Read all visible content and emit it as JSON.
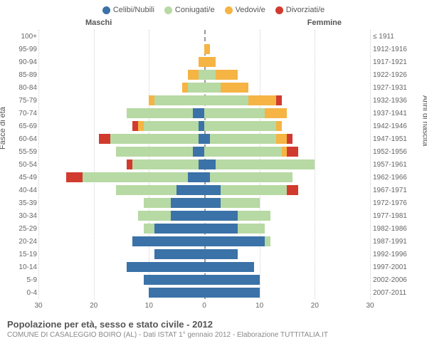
{
  "legend": [
    {
      "label": "Celibi/Nubili",
      "color": "#3b72a8"
    },
    {
      "label": "Coniugati/e",
      "color": "#b7d9a3"
    },
    {
      "label": "Vedovi/e",
      "color": "#f5b444"
    },
    {
      "label": "Divorziati/e",
      "color": "#d13b2e"
    }
  ],
  "header": {
    "male": "Maschi",
    "female": "Femmine"
  },
  "axes": {
    "left_title": "Fasce di età",
    "right_title": "Anni di nascita",
    "x_min": -30,
    "x_max": 30,
    "x_step": 10,
    "gridline_color": "#cfcfcf",
    "centerline_color": "#999999",
    "tick_fontsize": 10,
    "tick_color": "#666666"
  },
  "colors": {
    "celibi": "#3b72a8",
    "coniugati": "#b7d9a3",
    "vedovi": "#f5b444",
    "divorziati": "#d13b2e",
    "background": "#ffffff"
  },
  "rows": [
    {
      "age": "100+",
      "birth": "≤ 1911",
      "m": [
        0,
        0,
        0,
        0
      ],
      "f": [
        0,
        0,
        0,
        0
      ]
    },
    {
      "age": "95-99",
      "birth": "1912-1916",
      "m": [
        0,
        0,
        0,
        0
      ],
      "f": [
        0,
        0,
        1,
        0
      ]
    },
    {
      "age": "90-94",
      "birth": "1917-1921",
      "m": [
        0,
        0,
        1,
        0
      ],
      "f": [
        0,
        0,
        2,
        0
      ]
    },
    {
      "age": "85-89",
      "birth": "1922-1926",
      "m": [
        0,
        1,
        2,
        0
      ],
      "f": [
        0,
        2,
        4,
        0
      ]
    },
    {
      "age": "80-84",
      "birth": "1927-1931",
      "m": [
        0,
        3,
        1,
        0
      ],
      "f": [
        0,
        3,
        5,
        0
      ]
    },
    {
      "age": "75-79",
      "birth": "1932-1936",
      "m": [
        0,
        9,
        1,
        0
      ],
      "f": [
        0,
        8,
        5,
        1
      ]
    },
    {
      "age": "70-74",
      "birth": "1937-1941",
      "m": [
        2,
        12,
        0,
        0
      ],
      "f": [
        0,
        11,
        4,
        0
      ]
    },
    {
      "age": "65-69",
      "birth": "1942-1946",
      "m": [
        1,
        10,
        1,
        1
      ],
      "f": [
        0,
        13,
        1,
        0
      ]
    },
    {
      "age": "60-64",
      "birth": "1947-1951",
      "m": [
        1,
        16,
        0,
        2
      ],
      "f": [
        1,
        12,
        2,
        1
      ]
    },
    {
      "age": "55-59",
      "birth": "1952-1956",
      "m": [
        2,
        14,
        0,
        0
      ],
      "f": [
        0,
        14,
        1,
        2
      ]
    },
    {
      "age": "50-54",
      "birth": "1957-1961",
      "m": [
        1,
        12,
        0,
        1
      ],
      "f": [
        2,
        18,
        0,
        0
      ]
    },
    {
      "age": "45-49",
      "birth": "1962-1966",
      "m": [
        3,
        19,
        0,
        3
      ],
      "f": [
        1,
        15,
        0,
        0
      ]
    },
    {
      "age": "40-44",
      "birth": "1967-1971",
      "m": [
        5,
        11,
        0,
        0
      ],
      "f": [
        3,
        12,
        0,
        2
      ]
    },
    {
      "age": "35-39",
      "birth": "1972-1976",
      "m": [
        6,
        5,
        0,
        0
      ],
      "f": [
        3,
        7,
        0,
        0
      ]
    },
    {
      "age": "30-34",
      "birth": "1977-1981",
      "m": [
        6,
        6,
        0,
        0
      ],
      "f": [
        6,
        6,
        0,
        0
      ]
    },
    {
      "age": "25-29",
      "birth": "1982-1986",
      "m": [
        9,
        2,
        0,
        0
      ],
      "f": [
        6,
        5,
        0,
        0
      ]
    },
    {
      "age": "20-24",
      "birth": "1987-1991",
      "m": [
        13,
        0,
        0,
        0
      ],
      "f": [
        11,
        1,
        0,
        0
      ]
    },
    {
      "age": "15-19",
      "birth": "1992-1996",
      "m": [
        9,
        0,
        0,
        0
      ],
      "f": [
        6,
        0,
        0,
        0
      ]
    },
    {
      "age": "10-14",
      "birth": "1997-2001",
      "m": [
        14,
        0,
        0,
        0
      ],
      "f": [
        9,
        0,
        0,
        0
      ]
    },
    {
      "age": "5-9",
      "birth": "2002-2006",
      "m": [
        11,
        0,
        0,
        0
      ],
      "f": [
        10,
        0,
        0,
        0
      ]
    },
    {
      "age": "0-4",
      "birth": "2007-2011",
      "m": [
        10,
        0,
        0,
        0
      ],
      "f": [
        10,
        0,
        0,
        0
      ]
    }
  ],
  "footer": {
    "title": "Popolazione per età, sesso e stato civile - 2012",
    "sub": "COMUNE DI CASALEGGIO BOIRO (AL) - Dati ISTAT 1° gennaio 2012 - Elaborazione TUTTITALIA.IT"
  }
}
